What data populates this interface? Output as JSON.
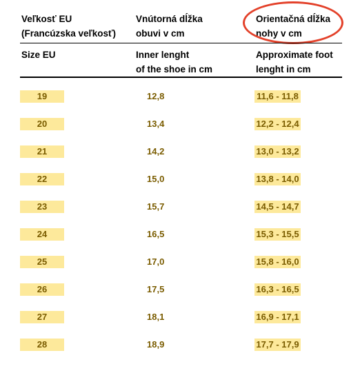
{
  "header": {
    "col1_line1": "Veľkosť EU",
    "col1_line2": "(Francúzska veľkosť)",
    "col2_line1": "Vnútorná dĺžka",
    "col2_line2": "obuvi v cm",
    "col3_line1": "Orientačná dĺžka",
    "col3_line2": "nohy v cm"
  },
  "subheader": {
    "col1_line1": "Size EU",
    "col2_line1": "Inner lenght",
    "col2_line2": "of the shoe in cm",
    "col3_line1": "Approximate foot",
    "col3_line2": "lenght in cm"
  },
  "rows": [
    {
      "size": "19",
      "inner": "12,8",
      "foot": "11,6 - 11,8"
    },
    {
      "size": "20",
      "inner": "13,4",
      "foot": "12,2 - 12,4"
    },
    {
      "size": "21",
      "inner": "14,2",
      "foot": "13,0 - 13,2"
    },
    {
      "size": "22",
      "inner": "15,0",
      "foot": "13,8 - 14,0"
    },
    {
      "size": "23",
      "inner": "15,7",
      "foot": "14,5 - 14,7"
    },
    {
      "size": "24",
      "inner": "16,5",
      "foot": "15,3 - 15,5"
    },
    {
      "size": "25",
      "inner": "17,0",
      "foot": "15,8 - 16,0"
    },
    {
      "size": "26",
      "inner": "17,5",
      "foot": "16,3 - 16,5"
    },
    {
      "size": "27",
      "inner": "18,1",
      "foot": "16,9 - 17,1"
    },
    {
      "size": "28",
      "inner": "18,9",
      "foot": "17,7 - 17,9"
    }
  ],
  "colors": {
    "highlight": "#fde99b",
    "value_text": "#7a5c00",
    "circle": "#e3412a"
  }
}
